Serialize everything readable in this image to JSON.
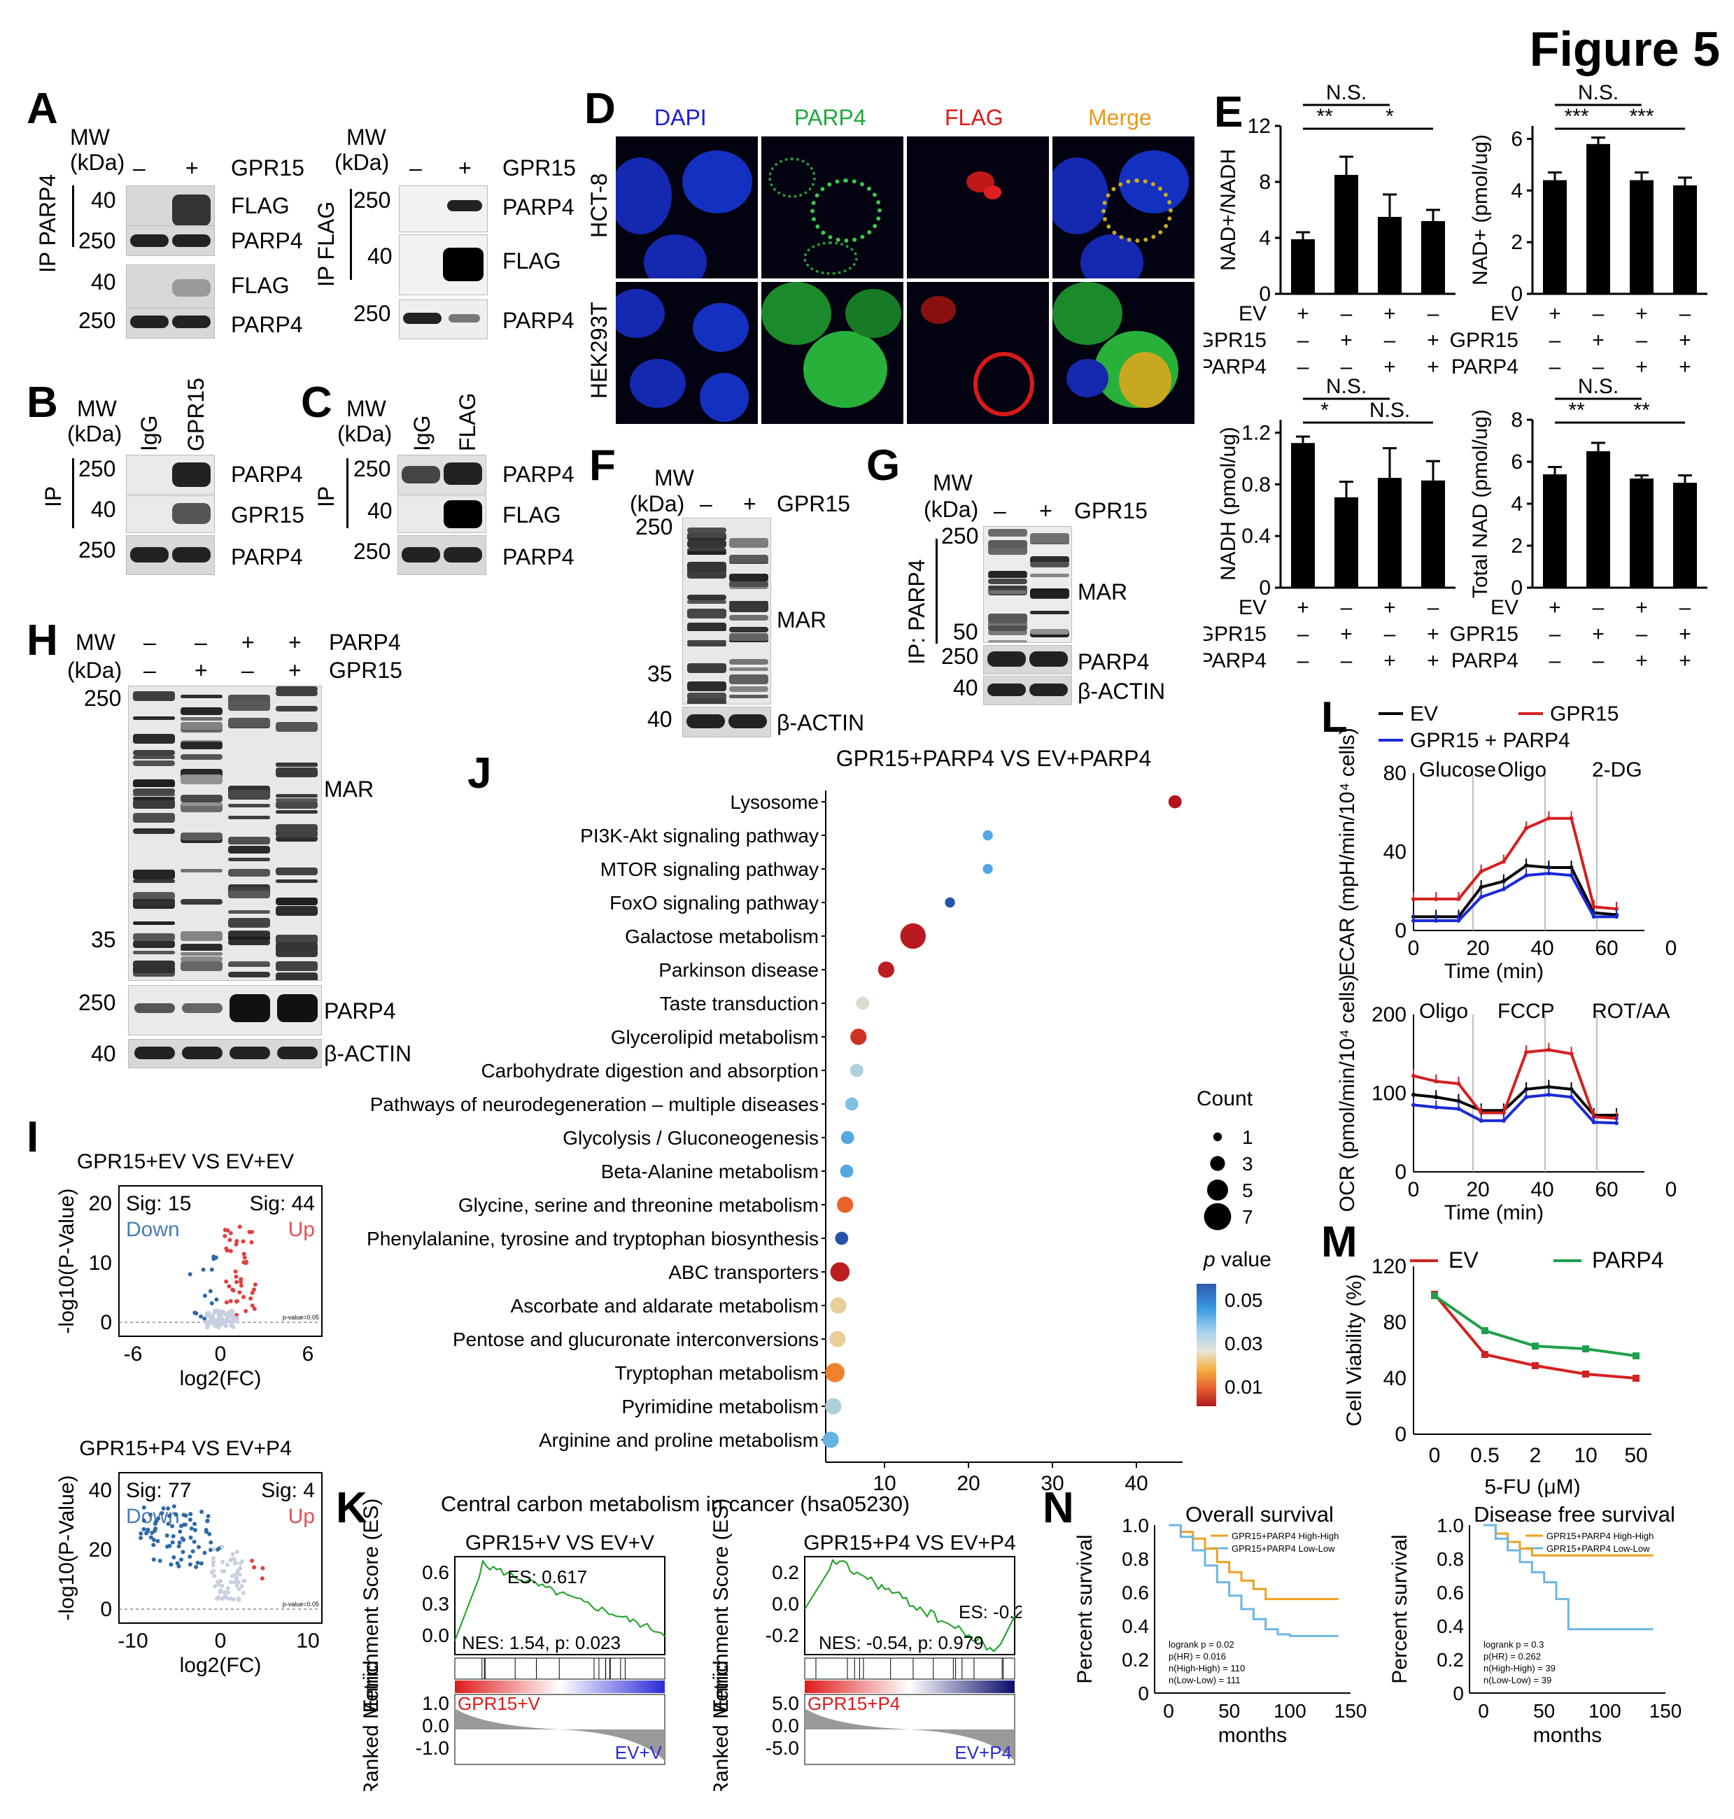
{
  "figure_title": "Figure 5",
  "panel_labels": [
    "A",
    "B",
    "C",
    "D",
    "E",
    "F",
    "G",
    "H",
    "I",
    "J",
    "K",
    "L",
    "M",
    "N"
  ],
  "common": {
    "mw": "MW",
    "kda": "(kDa)",
    "minus": "–",
    "plus": "+",
    "ip": "IP",
    "igg": "IgG"
  },
  "panelA": {
    "left": {
      "ip_label": "IP PARP4",
      "gpr15": "GPR15",
      "rows": [
        {
          "mw": "40",
          "label": "FLAG"
        },
        {
          "mw": "250",
          "label": "PARP4"
        },
        {
          "mw": "40",
          "label": "FLAG"
        },
        {
          "mw": "250",
          "label": "PARP4"
        }
      ]
    },
    "right": {
      "ip_label": "IP FLAG",
      "gpr15": "GPR15",
      "rows": [
        {
          "mw": "250",
          "label": "PARP4"
        },
        {
          "mw": "40",
          "label": "FLAG"
        },
        {
          "mw": "250",
          "label": "PARP4"
        }
      ]
    }
  },
  "panelB": {
    "lane2": "GPR15",
    "rows": [
      {
        "mw": "250",
        "label": "PARP4"
      },
      {
        "mw": "40",
        "label": "GPR15"
      },
      {
        "mw": "250",
        "label": "PARP4"
      }
    ]
  },
  "panelC": {
    "lane2": "FLAG",
    "rows": [
      {
        "mw": "250",
        "label": "PARP4"
      },
      {
        "mw": "40",
        "label": "FLAG"
      },
      {
        "mw": "250",
        "label": "PARP4"
      }
    ]
  },
  "panelD": {
    "columns": [
      "DAPI",
      "PARP4",
      "FLAG",
      "Merge"
    ],
    "column_colors": [
      "#1a1ae0",
      "#1ea83a",
      "#e01a1a",
      "#e89a1a"
    ],
    "rows": [
      "HCT-8",
      "HEK293T"
    ]
  },
  "panelE": {
    "row_labels": [
      "EV",
      "GPR15",
      "PARP4"
    ],
    "conditions": [
      [
        "+",
        "–",
        "–"
      ],
      [
        "–",
        "+",
        "–"
      ],
      [
        "+",
        "–",
        "+"
      ],
      [
        "–",
        "+",
        "+"
      ]
    ],
    "charts": [
      {
        "ylabel": "NAD+/NADH",
        "ylim": [
          0,
          12
        ],
        "ticks": [
          "0",
          "4",
          "8",
          "12"
        ],
        "values": [
          3.9,
          8.5,
          5.5,
          5.2
        ],
        "errors": [
          0.5,
          1.3,
          1.6,
          0.8
        ],
        "sig": [
          "N.S.",
          "**",
          "*"
        ]
      },
      {
        "ylabel": "NAD+ (pmol/ug)",
        "ylim": [
          0,
          6.5
        ],
        "ticks": [
          "0",
          "2",
          "4",
          "6"
        ],
        "values": [
          4.4,
          5.8,
          4.4,
          4.2
        ],
        "errors": [
          0.3,
          0.25,
          0.3,
          0.3
        ],
        "sig": [
          "N.S.",
          "***",
          "***"
        ]
      },
      {
        "ylabel": "NADH (pmol/ug)",
        "ylim": [
          0,
          1.3
        ],
        "ticks": [
          "0",
          "0.4",
          "0.8",
          "1.2"
        ],
        "values": [
          1.12,
          0.7,
          0.85,
          0.83
        ],
        "errors": [
          0.05,
          0.12,
          0.23,
          0.15
        ],
        "sig": [
          "N.S.",
          "*",
          "N.S."
        ]
      },
      {
        "ylabel": "Total NAD (pmol/ug)",
        "ylim": [
          0,
          8
        ],
        "ticks": [
          "0",
          "2",
          "4",
          "6",
          "8"
        ],
        "values": [
          5.4,
          6.5,
          5.2,
          5.0
        ],
        "errors": [
          0.35,
          0.4,
          0.15,
          0.35
        ],
        "sig": [
          "N.S.",
          "**",
          "**"
        ]
      }
    ]
  },
  "panelF": {
    "gpr15": "GPR15",
    "mar": "MAR",
    "mw_ticks": [
      "250",
      "35",
      "40"
    ],
    "loading": "β-ACTIN"
  },
  "panelG": {
    "gpr15": "GPR15",
    "ip_label": "IP: PARP4",
    "mar": "MAR",
    "mw_ticks": [
      "250",
      "50",
      "250",
      "40"
    ],
    "rows": [
      "PARP4",
      "β-ACTIN"
    ]
  },
  "panelH": {
    "parp4": "PARP4",
    "gpr15": "GPR15",
    "lanes_parp4": [
      "–",
      "–",
      "+",
      "+"
    ],
    "lanes_gpr15": [
      "–",
      "+",
      "–",
      "+"
    ],
    "mar": "MAR",
    "mw_ticks": [
      "250",
      "35",
      "250",
      "40"
    ],
    "rows": [
      "PARP4",
      "β-ACTIN"
    ]
  },
  "panelI": {
    "plots": [
      {
        "title": "GPR15+EV VS EV+EV",
        "sig_down": "Sig: 15",
        "sig_up": "Sig: 44",
        "down": "Down",
        "up": "Up",
        "xlabel": "log2(FC)",
        "ylabel": "-log10(P-Value)",
        "xticks": [
          "-6",
          "0",
          "6"
        ],
        "yticks": [
          "0",
          "10",
          "20"
        ],
        "note": "p-value=0.05"
      },
      {
        "title": "GPR15+P4 VS EV+P4",
        "sig_down": "Sig: 77",
        "sig_up": "Sig: 4",
        "down": "Down",
        "up": "Up",
        "xlabel": "log2(FC)",
        "ylabel": "-log10(P-Value)",
        "xticks": [
          "-10",
          "0",
          "10"
        ],
        "yticks": [
          "0",
          "20",
          "40"
        ],
        "note": "p-value=0.05"
      }
    ]
  },
  "chart_data": [
    {
      "type": "scatter",
      "title": "GPR15+PARP4 VS EV+PARP4",
      "xlabel": "Enrichment_score",
      "xticks": [
        "10",
        "20",
        "30",
        "40"
      ],
      "xlim": [
        3,
        45.5
      ],
      "categories": [
        "Lysosome",
        "PI3K-Akt signaling pathway",
        "MTOR signaling pathway",
        "FoxO signaling pathway",
        "Galactose metabolism",
        "Parkinson disease",
        "Taste transduction",
        "Glycerolipid metabolism",
        "Carbohydrate digestion and absorption",
        "Pathways of neurodegeneration – multiple diseases",
        "Glycolysis / Gluconeogenesis",
        "Beta-Alanine metabolism",
        "Glycine, serine and threonine metabolism",
        "Phenylalanine, tyrosine and tryptophan biosynthesis",
        "ABC transporters",
        "Ascorbate and aldarate metabolism",
        "Pentose and glucuronate interconversions",
        "Tryptophan metabolism",
        "Pyrimidine metabolism",
        "Arginine and proline metabolism"
      ],
      "enrichment": [
        44.6,
        22.3,
        22.3,
        17.8,
        13.4,
        10.2,
        7.4,
        6.9,
        6.7,
        6.1,
        5.6,
        5.5,
        5.3,
        4.9,
        4.7,
        4.5,
        4.4,
        4.1,
        3.9,
        3.6
      ],
      "count": [
        2,
        1,
        1,
        1,
        6,
        3,
        2,
        3,
        2,
        2,
        2,
        2,
        3,
        2,
        4,
        3,
        3,
        4,
        3,
        3
      ],
      "pvalue": [
        0.001,
        0.05,
        0.05,
        0.06,
        0.002,
        0.003,
        0.035,
        0.007,
        0.04,
        0.045,
        0.05,
        0.05,
        0.015,
        0.06,
        0.003,
        0.03,
        0.03,
        0.018,
        0.04,
        0.048
      ],
      "legend_count_title": "Count",
      "legend_count": [
        "1",
        "3",
        "5",
        "7"
      ],
      "legend_p_title": "p value",
      "legend_p": [
        "0.05",
        "0.03",
        "0.01"
      ]
    },
    {
      "type": "line",
      "title": "",
      "legend": [
        "EV",
        "GPR15",
        "GPR15 + PARP4"
      ],
      "ylabel": "ECAR (mpH/min/10⁴ cells)",
      "xlabel": "Time (min)",
      "annotations": [
        "Glucose",
        "Oligo",
        "2-DG"
      ],
      "xticks": [
        "0",
        "20",
        "40",
        "60",
        "0"
      ],
      "yticks": [
        "0",
        "40",
        "80"
      ],
      "x": [
        0,
        8,
        16,
        24,
        32,
        40,
        48,
        56,
        64,
        72
      ],
      "series": [
        {
          "name": "EV",
          "values": [
            7,
            7,
            7,
            22,
            25,
            33,
            32,
            32,
            9,
            8
          ]
        },
        {
          "name": "GPR15",
          "values": [
            16,
            16,
            16,
            30,
            35,
            52,
            57,
            57,
            12,
            11
          ]
        },
        {
          "name": "GPR15 + PARP4",
          "values": [
            5,
            5,
            5,
            17,
            21,
            28,
            29,
            28,
            7,
            7
          ]
        }
      ]
    },
    {
      "type": "line",
      "title": "",
      "ylabel": "OCR (pmol/min/10⁴ cells)",
      "xlabel": "Time (min)",
      "annotations": [
        "Oligo",
        "FCCP",
        "ROT/AA"
      ],
      "xticks": [
        "0",
        "20",
        "40",
        "60",
        "0"
      ],
      "yticks": [
        "0",
        "100",
        "200"
      ],
      "x": [
        0,
        8,
        16,
        24,
        32,
        40,
        48,
        56,
        64,
        72
      ],
      "series": [
        {
          "name": "EV",
          "values": [
            98,
            95,
            90,
            78,
            78,
            105,
            108,
            105,
            72,
            72
          ]
        },
        {
          "name": "GPR15",
          "values": [
            122,
            115,
            112,
            75,
            75,
            152,
            155,
            150,
            70,
            68
          ]
        },
        {
          "name": "GPR15 + PARP4",
          "values": [
            85,
            82,
            80,
            65,
            65,
            95,
            98,
            95,
            63,
            62
          ]
        }
      ]
    },
    {
      "type": "line",
      "title": "",
      "legend": [
        "EV",
        "PARP4"
      ],
      "ylabel": "Cell Viability (%)",
      "xlabel": "5-FU (μM)",
      "categories": [
        "0",
        "0.5",
        "2",
        "10",
        "50"
      ],
      "yticks": [
        "0",
        "40",
        "80",
        "120"
      ],
      "series": [
        {
          "name": "EV",
          "values": [
            100,
            57,
            49,
            43,
            40
          ]
        },
        {
          "name": "PARP4",
          "values": [
            99,
            74,
            63,
            61,
            56
          ]
        }
      ]
    },
    {
      "type": "line",
      "title": "Overall survival",
      "ylabel": "Percent survival",
      "xlabel": "months",
      "legend": [
        "GPR15+PARP4 High-High",
        "GPR15+PARP4 Low-Low"
      ],
      "stats": [
        "logrank p = 0.02",
        "p(HR) = 0.016",
        "n(High-High) = 110",
        "n(Low-Low) = 111"
      ],
      "xticks": [
        "0",
        "50",
        "100",
        "150"
      ],
      "yticks": [
        "0",
        "0.2",
        "0.4",
        "0.6",
        "0.8",
        "1.0"
      ],
      "series": [
        {
          "name": "GPR15+PARP4 High-High",
          "x": [
            0,
            10,
            20,
            30,
            40,
            50,
            60,
            70,
            80,
            90,
            100,
            140
          ],
          "values": [
            1.0,
            0.96,
            0.92,
            0.86,
            0.78,
            0.72,
            0.67,
            0.62,
            0.56,
            0.56,
            0.56,
            0.56
          ]
        },
        {
          "name": "GPR15+PARP4 Low-Low",
          "x": [
            0,
            10,
            20,
            30,
            40,
            50,
            60,
            70,
            80,
            90,
            100,
            140
          ],
          "values": [
            1.0,
            0.93,
            0.85,
            0.76,
            0.66,
            0.58,
            0.5,
            0.44,
            0.38,
            0.35,
            0.34,
            0.34
          ]
        }
      ]
    },
    {
      "type": "line",
      "title": "Disease free survival",
      "ylabel": "Percent survival",
      "xlabel": "months",
      "legend": [
        "GPR15+PARP4 High-High",
        "GPR15+PARP4 Low-Low"
      ],
      "stats": [
        "logrank p = 0.3",
        "p(HR) = 0.262",
        "n(High-High) = 39",
        "n(Low-Low) = 39"
      ],
      "xticks": [
        "0",
        "50",
        "100",
        "150"
      ],
      "yticks": [
        "0",
        "0.2",
        "0.4",
        "0.6",
        "0.8",
        "1.0"
      ],
      "series": [
        {
          "name": "GPR15+PARP4 High-High",
          "x": [
            0,
            10,
            20,
            30,
            40,
            140
          ],
          "values": [
            1.0,
            0.95,
            0.9,
            0.86,
            0.82,
            0.82
          ]
        },
        {
          "name": "GPR15+PARP4 Low-Low",
          "x": [
            0,
            10,
            20,
            30,
            40,
            50,
            60,
            70,
            140
          ],
          "values": [
            1.0,
            0.92,
            0.85,
            0.78,
            0.72,
            0.66,
            0.56,
            0.38,
            0.38
          ]
        }
      ]
    }
  ],
  "panelK": {
    "title": "Central carbon metabolism in cancer (hsa05230)",
    "ylabel_es": "Enrichment Score (ES)",
    "ylabel_rank": "Ranked Metric",
    "plots": [
      {
        "subtitle": "GPR15+V VS EV+V",
        "es": "ES: 0.617",
        "nes": "NES: 1.54, p: 0.023",
        "left": "GPR15+V",
        "right": "EV+V",
        "yticks": [
          "0.6",
          "0.3",
          "0.0"
        ],
        "rticks": [
          "1.0",
          "0.0",
          "-1.0"
        ]
      },
      {
        "subtitle": "GPR15+P4 VS EV+P4",
        "es": "ES: -0.245",
        "nes": "NES: -0.54, p: 0.979",
        "left": "GPR15+P4",
        "right": "EV+P4",
        "yticks": [
          "0.2",
          "0.0",
          "-0.2"
        ],
        "rticks": [
          "5.0",
          "0.0",
          "-5.0"
        ]
      }
    ]
  },
  "colors": {
    "red": "#d42020",
    "blue": "#1a2ad8",
    "green": "#1ea04a",
    "orange": "#f0a020",
    "light_blue": "#6cb6e6"
  }
}
